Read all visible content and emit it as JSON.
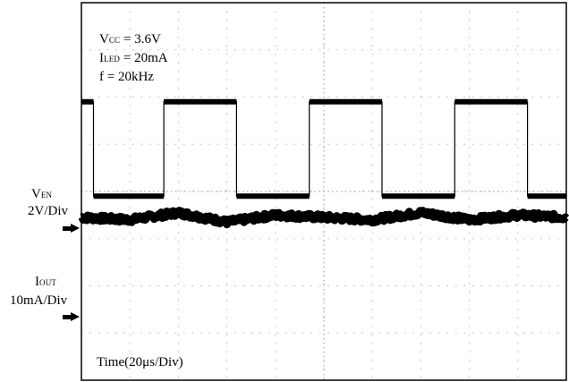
{
  "conditions": {
    "vcc_main": "V",
    "vcc_sub": "CC",
    "vcc_value": " = 3.6V",
    "iled_main": "I",
    "iled_sub": "LED",
    "iled_value": " = 20mA",
    "freq": "f = 20kHz"
  },
  "channels": {
    "ven_main": "V",
    "ven_sub": "EN",
    "ven_scale": "2V/Div",
    "iout_main": "I",
    "iout_sub": "OUT",
    "iout_scale": "10mA/Div"
  },
  "time_label": "Time(20μs/Div)",
  "chart_data": {
    "type": "line",
    "x_unit": "div",
    "xlim": [
      0,
      10
    ],
    "ylim_div": [
      -4,
      4
    ],
    "grid": true,
    "series": [
      {
        "name": "VEN",
        "scale": "2V/Div",
        "x": [
          0,
          0.25,
          0.25,
          1.7,
          1.7,
          3.2,
          3.2,
          4.7,
          4.7,
          6.2,
          6.2,
          7.7,
          7.7,
          9.2,
          9.2,
          10
        ],
        "y_div": [
          1.9,
          1.9,
          -0.1,
          -0.1,
          1.9,
          1.9,
          -0.1,
          -0.1,
          1.9,
          1.9,
          -0.1,
          -0.1,
          1.9,
          1.9,
          -0.1,
          -0.1
        ]
      },
      {
        "name": "IOUT",
        "scale": "10mA/Div",
        "x": [
          0,
          1,
          2,
          3,
          4,
          5,
          6,
          7,
          8,
          9,
          10
        ],
        "y_div": [
          -0.55,
          -0.6,
          -0.45,
          -0.65,
          -0.5,
          -0.55,
          -0.6,
          -0.45,
          -0.6,
          -0.5,
          -0.55
        ]
      }
    ]
  }
}
